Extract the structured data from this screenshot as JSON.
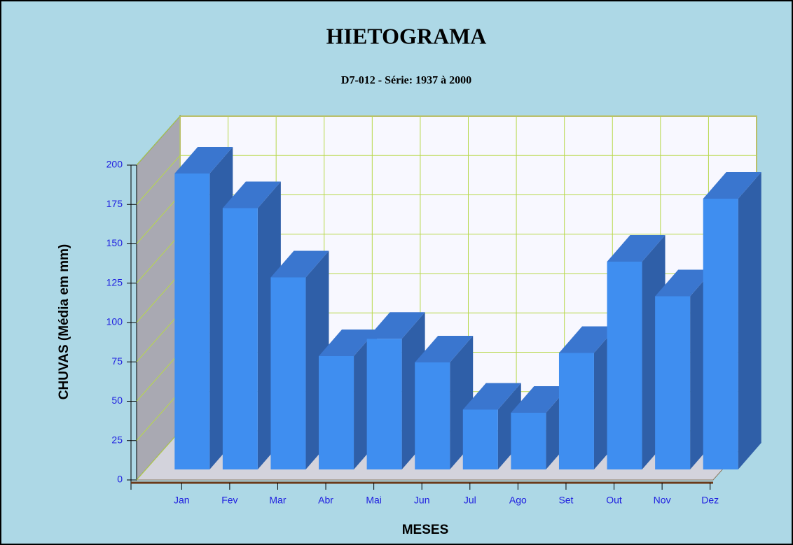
{
  "chart_data": {
    "type": "bar3d",
    "title": "HIETOGRAMA",
    "subtitle": "D7-012 - Série: 1937 à 2000",
    "y_label": "CHUVAS (Média em mm)",
    "x_label": "MESES",
    "categories": [
      "Jan",
      "Fev",
      "Mar",
      "Abr",
      "Mai",
      "Jun",
      "Jul",
      "Ago",
      "Set",
      "Out",
      "Nov",
      "Dez"
    ],
    "values": [
      188,
      166,
      122,
      72,
      83,
      68,
      38,
      36,
      74,
      132,
      110,
      172
    ],
    "color": "#3f8ef0",
    "ylim": [
      0,
      200
    ],
    "yticks": [
      0,
      25,
      50,
      75,
      100,
      125,
      150,
      175,
      200
    ],
    "grid": true
  }
}
